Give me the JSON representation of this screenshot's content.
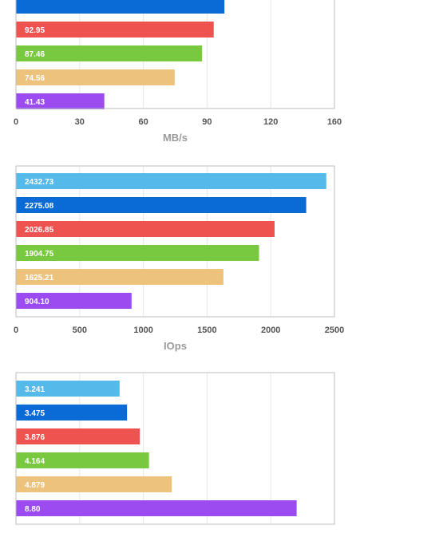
{
  "colors": {
    "sky": "#55b9ea",
    "blue": "#0a6ad6",
    "red": "#ef5350",
    "green": "#78c840",
    "tan": "#ecc27c",
    "purple": "#9b4bef",
    "grid": "#e6e6e6",
    "frame": "#bdbdbd",
    "tick_text": "#555555",
    "axis_title": "#9a9a9a",
    "bar_label": "#ffffff"
  },
  "chart_data": [
    {
      "type": "bar",
      "orientation": "horizontal",
      "xlabel": "MB/s",
      "xlim": [
        0,
        150
      ],
      "ticks": [
        0,
        30,
        60,
        90,
        120,
        160
      ],
      "grid": true,
      "bars": [
        {
          "value": 98.0,
          "label": "",
          "color": "blue"
        },
        {
          "value": 92.95,
          "label": "92.95",
          "color": "red"
        },
        {
          "value": 87.46,
          "label": "87.46",
          "color": "green"
        },
        {
          "value": 74.56,
          "label": "74.56",
          "color": "tan"
        },
        {
          "value": 41.43,
          "label": "41.43",
          "color": "purple"
        }
      ]
    },
    {
      "type": "bar",
      "orientation": "horizontal",
      "xlabel": "IOps",
      "xlim": [
        0,
        2500
      ],
      "ticks": [
        0,
        500,
        1000,
        1500,
        2000,
        2500
      ],
      "grid": true,
      "bars": [
        {
          "value": 2432.73,
          "label": "2432.73",
          "color": "sky"
        },
        {
          "value": 2275.08,
          "label": "2275.08",
          "color": "blue"
        },
        {
          "value": 2026.85,
          "label": "2026.85",
          "color": "red"
        },
        {
          "value": 1904.75,
          "label": "1904.75",
          "color": "green"
        },
        {
          "value": 1625.21,
          "label": "1625.21",
          "color": "tan"
        },
        {
          "value": 904.1,
          "label": "904.10",
          "color": "purple"
        }
      ]
    },
    {
      "type": "bar",
      "orientation": "horizontal",
      "xlabel": "",
      "xlim": [
        0,
        10
      ],
      "ticks": [],
      "grid": true,
      "bars": [
        {
          "value": 3.241,
          "label": "3.241",
          "color": "sky"
        },
        {
          "value": 3.475,
          "label": "3.475",
          "color": "blue"
        },
        {
          "value": 3.876,
          "label": "3.876",
          "color": "red"
        },
        {
          "value": 4.164,
          "label": "4.164",
          "color": "green"
        },
        {
          "value": 4.879,
          "label": "4.879",
          "color": "tan"
        },
        {
          "value": 8.8,
          "label": "8.80",
          "color": "purple"
        }
      ]
    }
  ]
}
